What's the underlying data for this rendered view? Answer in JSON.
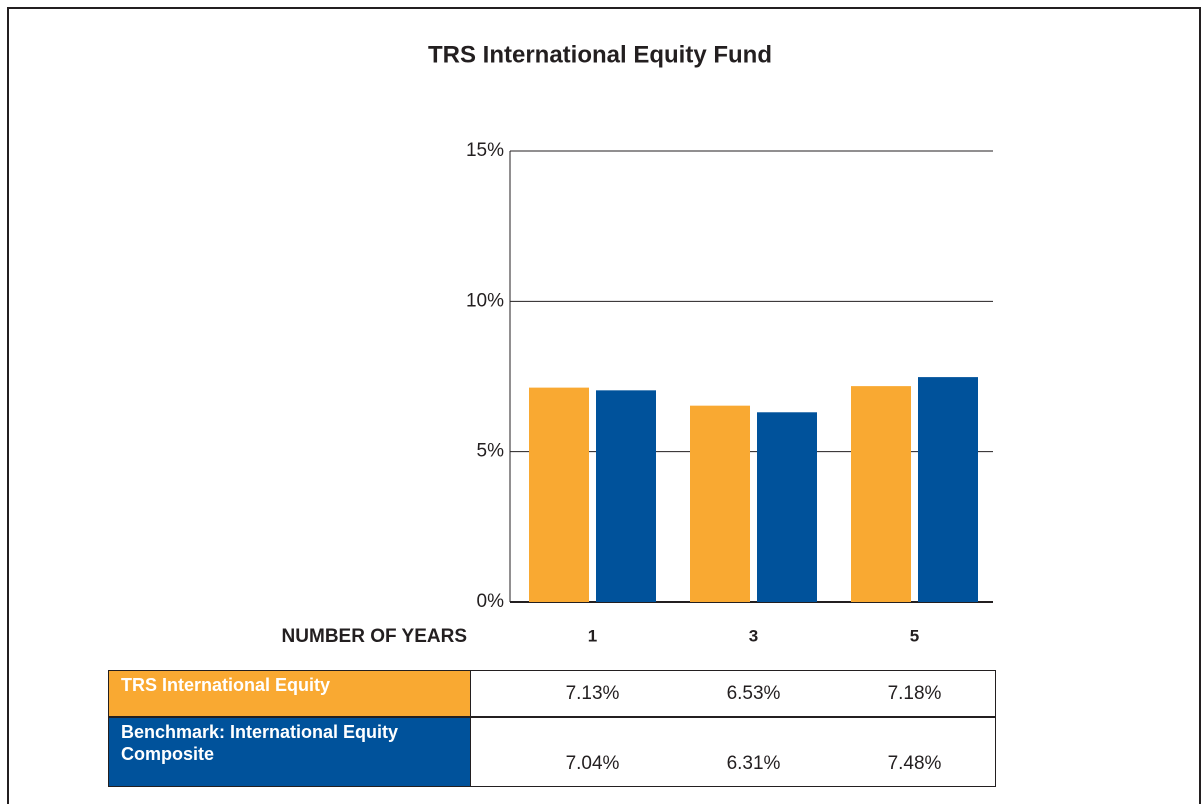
{
  "chart_data": {
    "type": "bar",
    "title": "TRS International Equity Fund",
    "x_label": "NUMBER OF YEARS",
    "categories": [
      "1",
      "3",
      "5"
    ],
    "series": [
      {
        "name": "TRS International Equity",
        "color": "#f9a932",
        "values": [
          7.13,
          6.53,
          7.18
        ],
        "value_labels": [
          "7.13%",
          "6.53%",
          "7.18%"
        ]
      },
      {
        "name": "Benchmark: International Equity Composite",
        "color": "#00529b",
        "values": [
          7.04,
          6.31,
          7.48
        ],
        "value_labels": [
          "7.04%",
          "6.31%",
          "7.48%"
        ]
      }
    ],
    "ylim": [
      0,
      15
    ],
    "yticks": [
      {
        "value": 0,
        "label": "0%"
      },
      {
        "value": 5,
        "label": "5%"
      },
      {
        "value": 10,
        "label": "10%"
      },
      {
        "value": 15,
        "label": "15%"
      }
    ],
    "grid": true
  }
}
